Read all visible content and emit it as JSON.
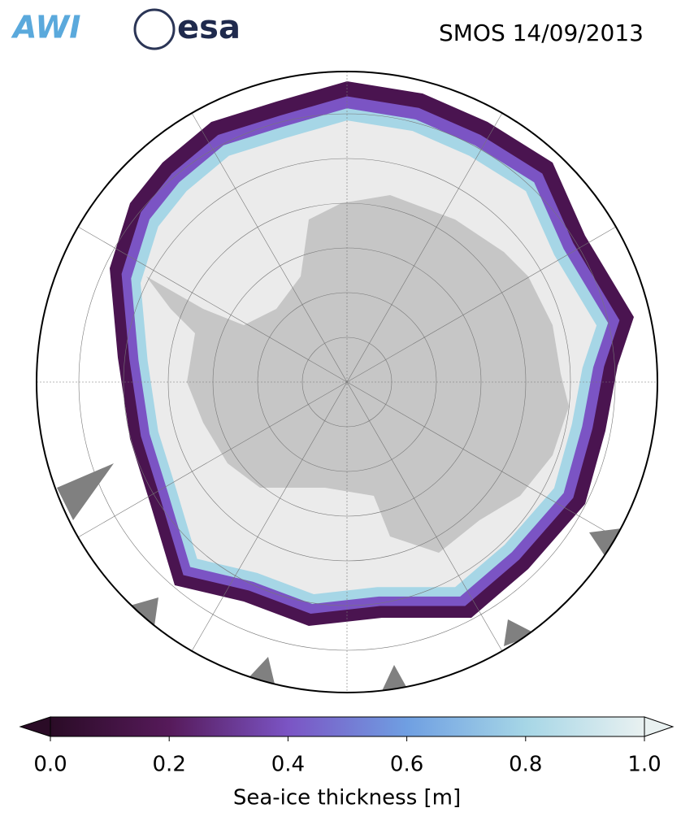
{
  "header": {
    "title": "SMOS 14/09/2013",
    "logos": [
      "AWI",
      "esa"
    ]
  },
  "chart_data": {
    "type": "colorbar",
    "label": "Sea-ice thickness [m]",
    "lim": [
      0,
      1
    ],
    "ticks": [
      {
        "value": 0,
        "label": "0.0"
      },
      {
        "value": 0.2,
        "label": "0.2"
      },
      {
        "value": 0.4,
        "label": "0.4"
      },
      {
        "value": 0.6,
        "label": "0.6"
      },
      {
        "value": 0.8,
        "label": "0.8"
      },
      {
        "value": 1,
        "label": "1.0"
      }
    ],
    "colors": [
      "#2a0b26",
      "#561a5a",
      "#7b54c4",
      "#6f9fe2",
      "#a6d6e6",
      "#e9f1f1"
    ],
    "extend": "both"
  }
}
